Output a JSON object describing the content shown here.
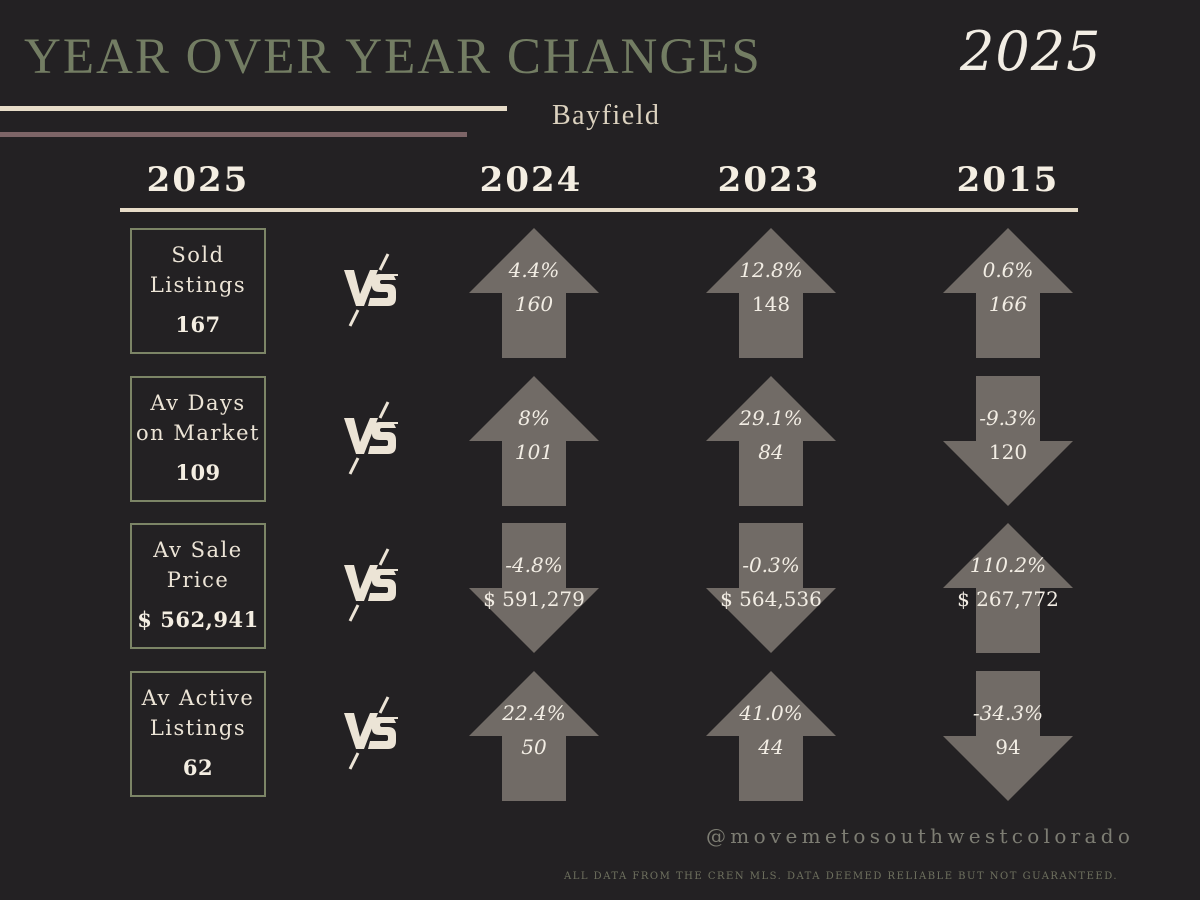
{
  "header": {
    "title": "YEAR OVER YEAR CHANGES",
    "year": "2025",
    "location": "Bayfield"
  },
  "columns": {
    "current": "2025",
    "comparisons": [
      "2024",
      "2023",
      "2015"
    ]
  },
  "vs_label": "VS",
  "metrics": [
    {
      "label": "Sold\nListings",
      "value": "167",
      "comparisons": [
        {
          "year": "2024",
          "direction": "up",
          "change": "4.4%",
          "value": "160",
          "value_italic": true
        },
        {
          "year": "2023",
          "direction": "up",
          "change": "12.8%",
          "value": "148",
          "value_italic": false
        },
        {
          "year": "2015",
          "direction": "up",
          "change": "0.6%",
          "value": "166",
          "value_italic": true
        }
      ]
    },
    {
      "label": "Av Days\non Market",
      "value": "109",
      "comparisons": [
        {
          "year": "2024",
          "direction": "up",
          "change": "8%",
          "value": "101",
          "value_italic": true
        },
        {
          "year": "2023",
          "direction": "up",
          "change": "29.1%",
          "value": "84",
          "value_italic": true
        },
        {
          "year": "2015",
          "direction": "down",
          "change": "-9.3%",
          "value": "120",
          "value_italic": false
        }
      ]
    },
    {
      "label": "Av Sale\nPrice",
      "value": "$ 562,941",
      "comparisons": [
        {
          "year": "2024",
          "direction": "down",
          "change": "-4.8%",
          "value": "$ 591,279",
          "value_italic": false
        },
        {
          "year": "2023",
          "direction": "down",
          "change": "-0.3%",
          "value": "$ 564,536",
          "value_italic": false
        },
        {
          "year": "2015",
          "direction": "up",
          "change": "110.2%",
          "value": "$ 267,772",
          "value_italic": false
        }
      ]
    },
    {
      "label": "Av Active\nListings",
      "value": "62",
      "comparisons": [
        {
          "year": "2024",
          "direction": "up",
          "change": "22.4%",
          "value": "50",
          "value_italic": true
        },
        {
          "year": "2023",
          "direction": "up",
          "change": "41.0%",
          "value": "44",
          "value_italic": true
        },
        {
          "year": "2015",
          "direction": "down",
          "change": "-34.3%",
          "value": "94",
          "value_italic": false
        }
      ]
    }
  ],
  "footer": {
    "handle": "@movemetosouthwestcolorado",
    "disclaimer": "ALL DATA FROM THE CREN MLS. DATA DEEMED RELIABLE BUT NOT GUARANTEED."
  },
  "colors": {
    "background": "#232123",
    "title": "#737d63",
    "arrow": "#716b66",
    "box_border": "#7c8566",
    "rule_cream": "#e7dcc8",
    "rule_mauve": "#7d6567"
  }
}
